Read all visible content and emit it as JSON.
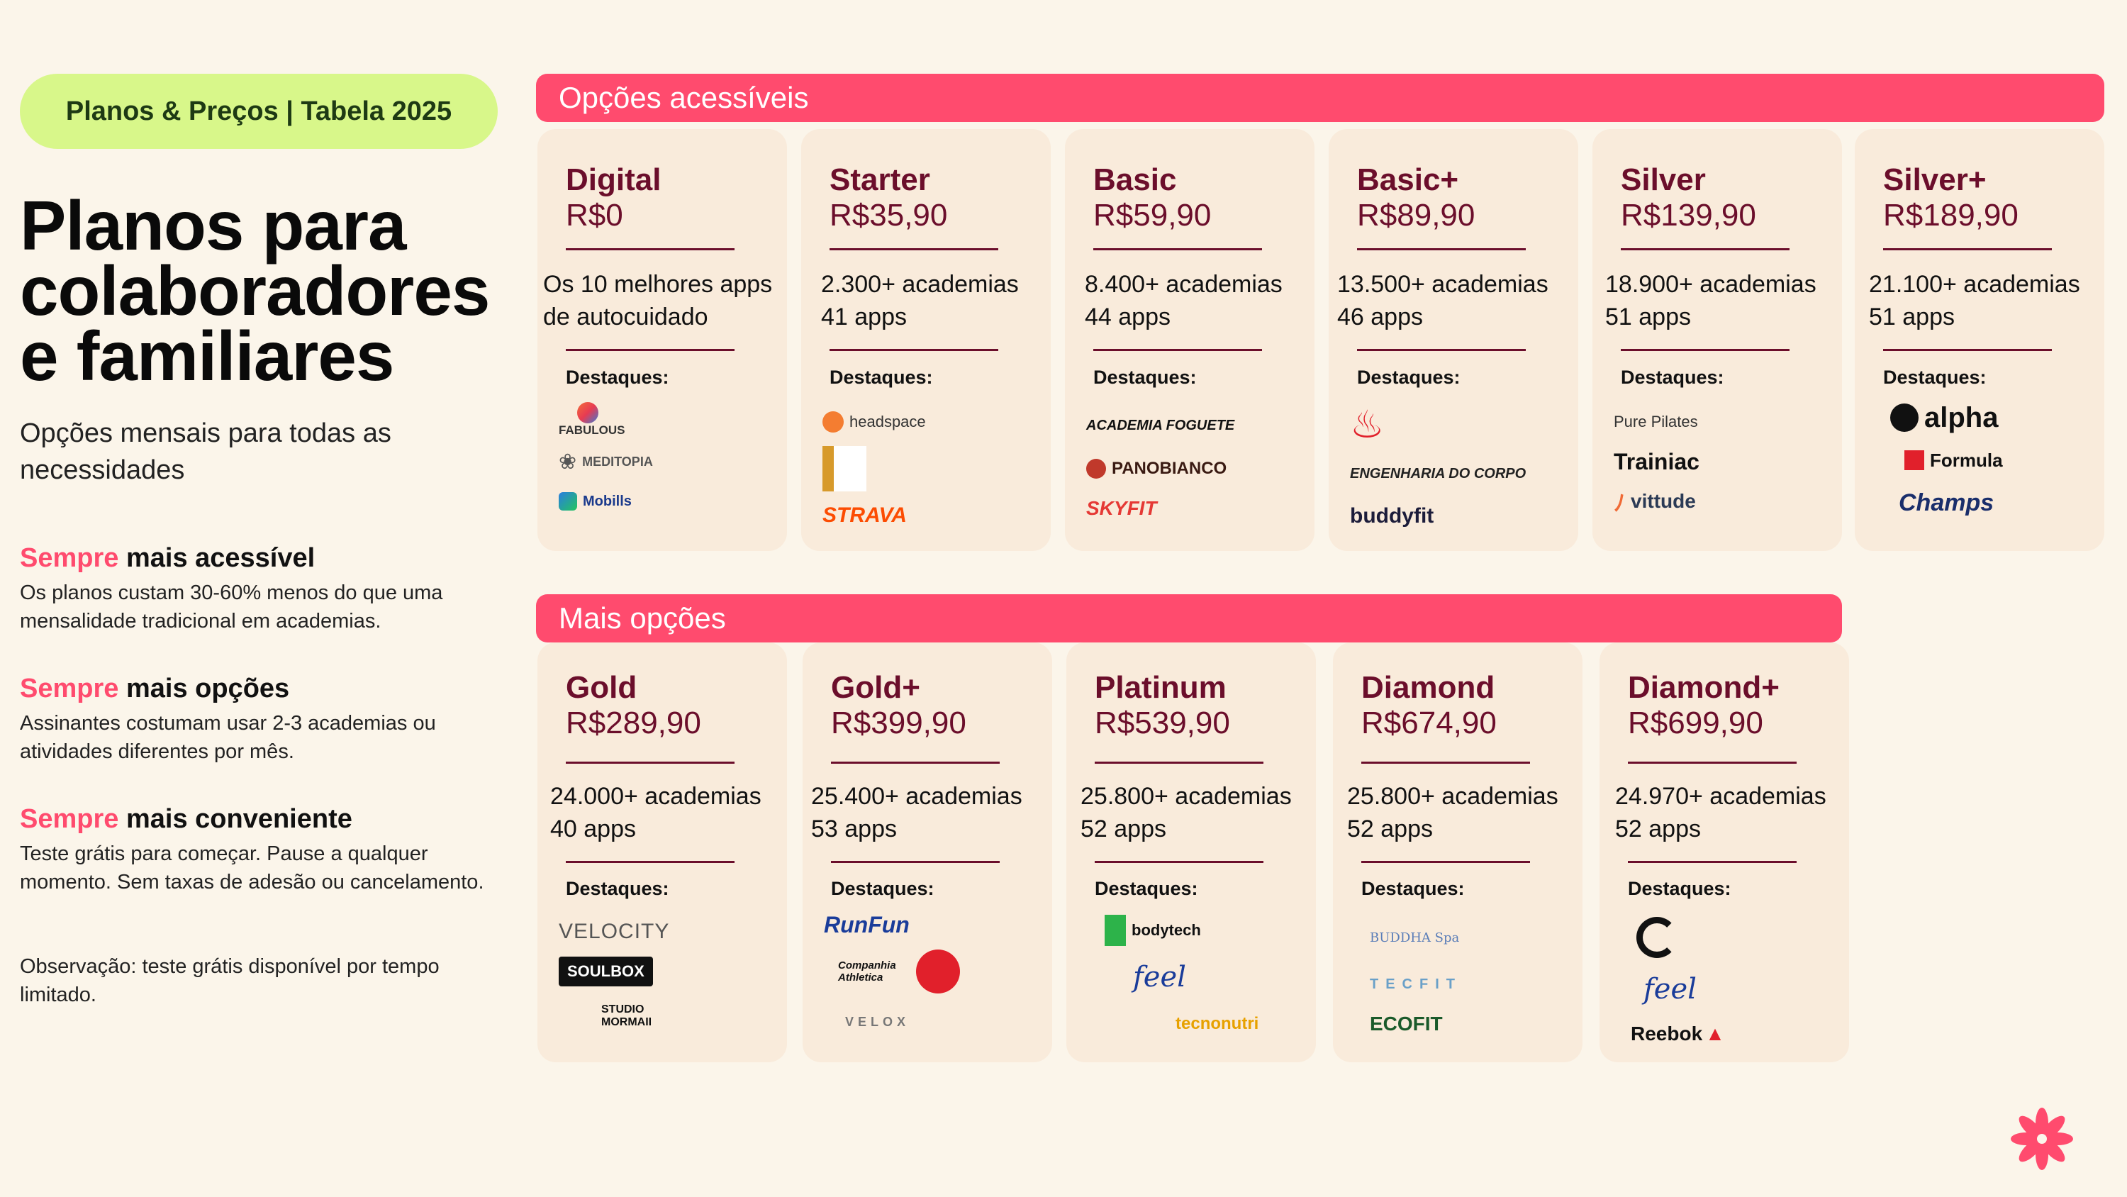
{
  "header": {
    "pill_label": "Planos & Preços | Tabela 2025",
    "title_lines": [
      "Planos para",
      "colaboradores",
      "e familiares"
    ],
    "subtitle": "Opções mensais para todas as necessidades"
  },
  "benefits": [
    {
      "accent": "Sempre",
      "rest": " mais acessível",
      "body": "Os planos custam 30-60% menos do que uma mensalidade tradicional em academias."
    },
    {
      "accent": "Sempre",
      "rest": " mais opções",
      "body": "Assinantes costumam usar 2-3 academias ou atividades diferentes por mês."
    },
    {
      "accent": "Sempre",
      "rest": " mais conveniente",
      "body": "Teste grátis para começar. Pause a qualquer momento. Sem taxas de adesão ou cancelamento."
    }
  ],
  "note": "Observação: teste grátis disponível por tempo limitado.",
  "sections": {
    "affordable": "Opções acessíveis",
    "more": "Mais opções"
  },
  "highlights_label": "Destaques:",
  "plans_row1": [
    {
      "name": "Digital",
      "price": "R$0",
      "line1": "Os 10 melhores apps",
      "line2": "de autocuidado",
      "logos": [
        "FABULOUS",
        "MEDITOPIA",
        "Mobills"
      ]
    },
    {
      "name": "Starter",
      "price": "R$35,90",
      "line1": "2.300+ academias",
      "line2": "41 apps",
      "logos": [
        "headspace",
        "",
        "STRAVA"
      ]
    },
    {
      "name": "Basic",
      "price": "R$59,90",
      "line1": "8.400+ academias",
      "line2": "44 apps",
      "logos": [
        "ACADEMIA FOGUETE",
        "PANOBIANCO",
        "SKYFIT"
      ]
    },
    {
      "name": "Basic+",
      "price": "R$89,90",
      "line1": "13.500+ academias",
      "line2": "46 apps",
      "logos": [
        "",
        "ENGENHARIA DO CORPO",
        "buddyfit"
      ]
    },
    {
      "name": "Silver",
      "price": "R$139,90",
      "line1": "18.900+ academias",
      "line2": "51 apps",
      "logos": [
        "Pure Pilates",
        "Trainiac",
        "vittude"
      ]
    },
    {
      "name": "Silver+",
      "price": "R$189,90",
      "line1": "21.100+ academias",
      "line2": "51 apps",
      "logos": [
        "alpha",
        "Formula",
        "Champs"
      ]
    }
  ],
  "plans_row2": [
    {
      "name": "Gold",
      "price": "R$289,90",
      "line1": "24.000+ academias",
      "line2": "40 apps",
      "logos": [
        "VELOCITY",
        "SOULBOX",
        "STUDIO MORMAII"
      ]
    },
    {
      "name": "Gold+",
      "price": "R$399,90",
      "line1": "25.400+ academias",
      "line2": "53 apps",
      "logos": [
        "RunFun",
        "Companhia Athletica",
        "VELOX"
      ]
    },
    {
      "name": "Platinum",
      "price": "R$539,90",
      "line1": "25.800+ academias",
      "line2": "52 apps",
      "logos": [
        "bodytech",
        "feel",
        "tecnonutri"
      ]
    },
    {
      "name": "Diamond",
      "price": "R$674,90",
      "line1": "25.800+ academias",
      "line2": "52 apps",
      "logos": [
        "BUDDHA Spa",
        "TECFIT",
        "ECOFIT"
      ]
    },
    {
      "name": "Diamond+",
      "price": "R$699,90",
      "line1": "24.970+ academias",
      "line2": "52 apps",
      "logos": [
        "",
        "feel",
        "Reebok"
      ]
    }
  ],
  "colors": {
    "accent": "#ff4b6e",
    "plan_text": "#6b0e2b",
    "card_bg": "#f9ebdb",
    "pill_bg": "#d8f78a",
    "page_bg": "#fbf5ea"
  }
}
